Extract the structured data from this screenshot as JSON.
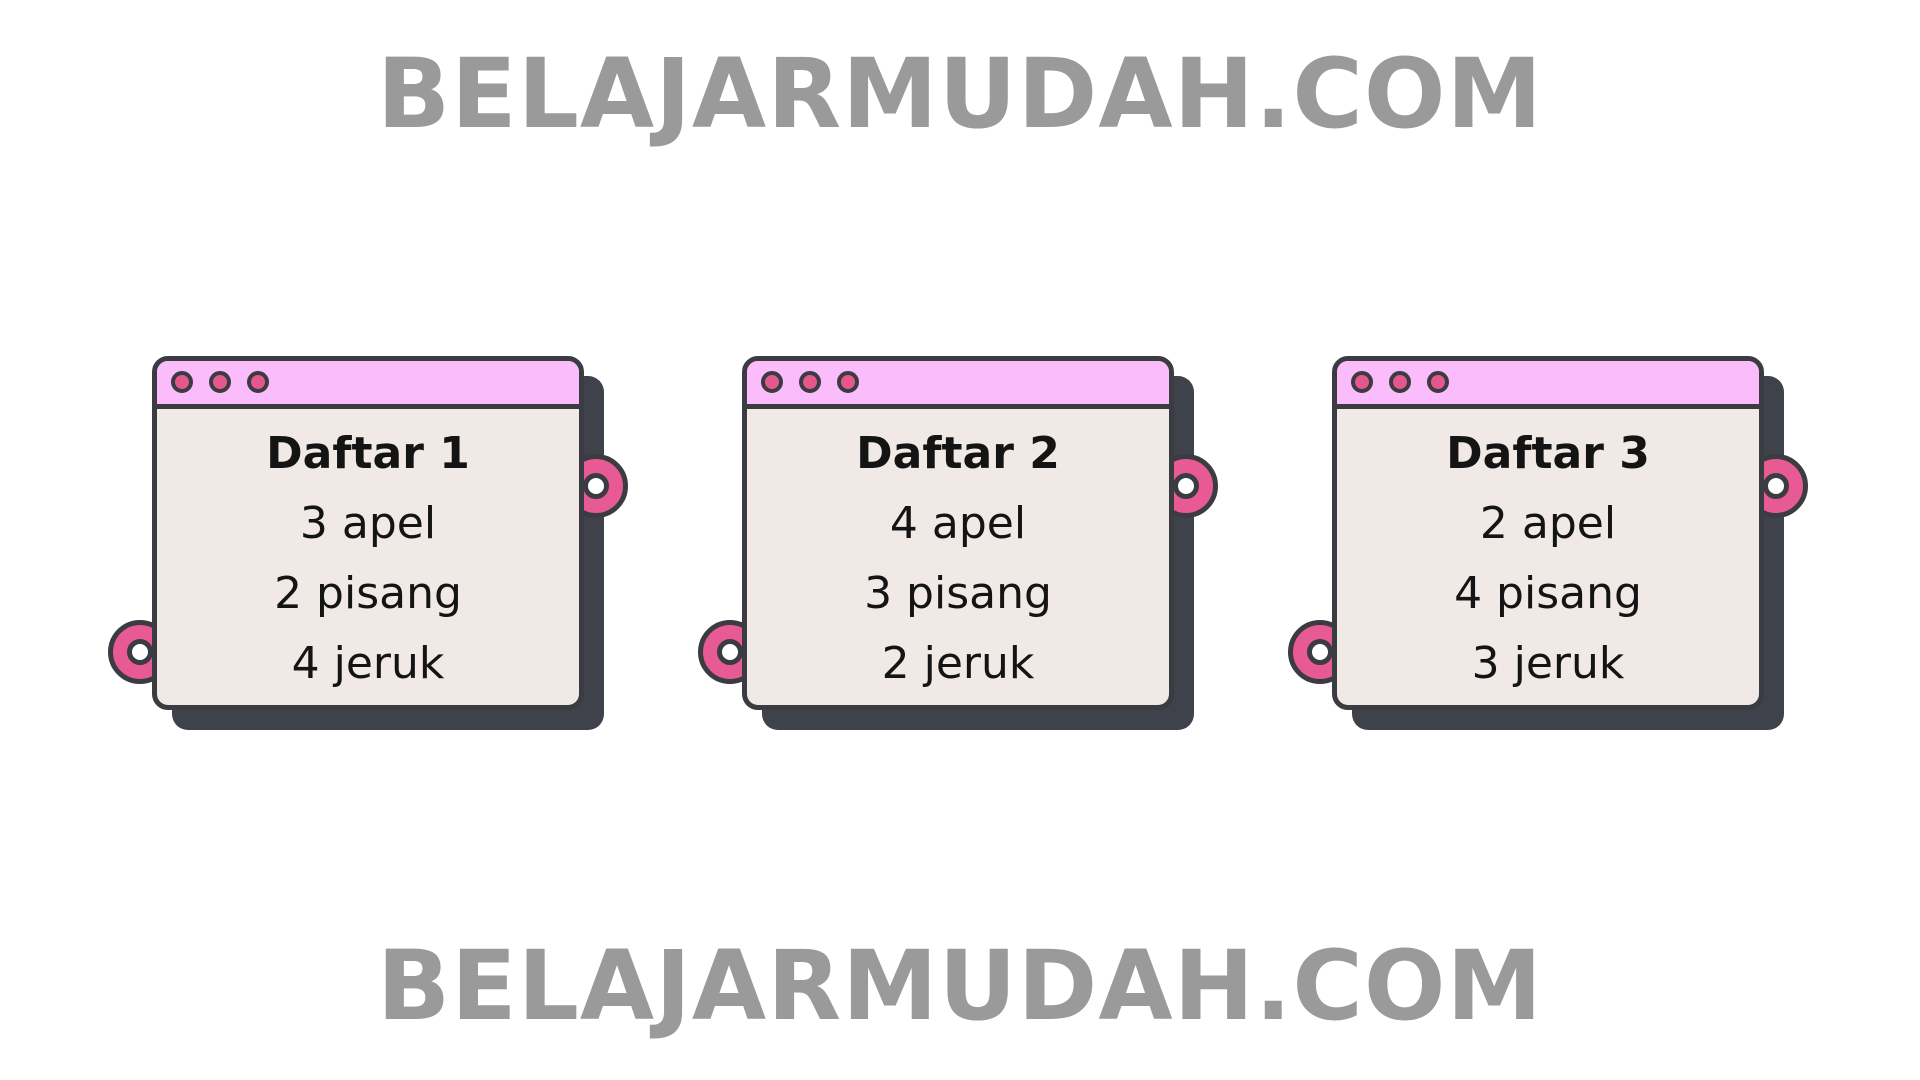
{
  "watermark_top": "BELAJARMUDAH.COM",
  "watermark_bottom": "BELAJARMUDAH.COM",
  "colors": {
    "titlebar": "#fbbcfb",
    "card_body": "#f1e9e6",
    "accent_pink": "#e75a93",
    "outline": "#3a3c42",
    "watermark": "#9a9a9a"
  },
  "lists": [
    {
      "title": "Daftar 1",
      "items": [
        "3 apel",
        "2 pisang",
        "4 jeruk"
      ]
    },
    {
      "title": "Daftar 2",
      "items": [
        "4 apel",
        "3 pisang",
        "2 jeruk"
      ]
    },
    {
      "title": "Daftar 3",
      "items": [
        "2 apel",
        "4 pisang",
        "3 jeruk"
      ]
    }
  ]
}
